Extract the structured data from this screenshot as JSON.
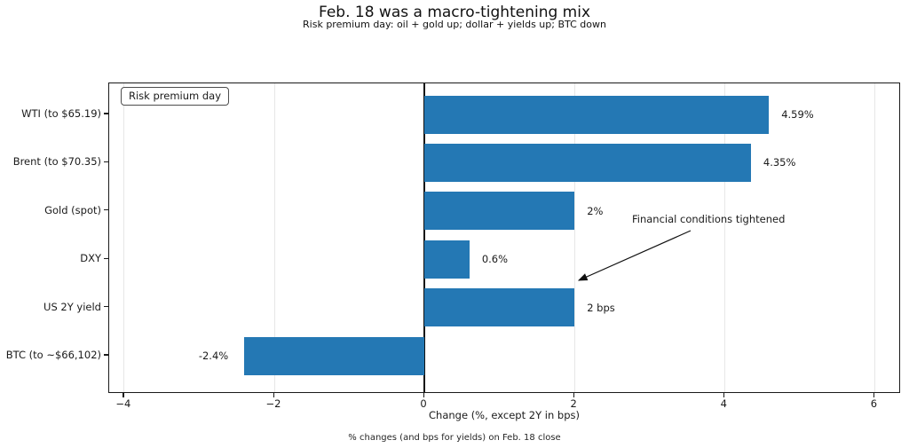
{
  "chart_data": {
    "type": "bar",
    "orientation": "horizontal",
    "title": "Feb. 18 was a macro-tightening mix",
    "subtitle": "Risk premium day: oil + gold up; dollar + yields up; BTC down",
    "categories": [
      "WTI (to $65.19)",
      "Brent (to $70.35)",
      "Gold (spot)",
      "DXY",
      "US 2Y yield",
      "BTC (to ~$66,102)"
    ],
    "values": [
      4.59,
      4.35,
      2.0,
      0.6,
      2.0,
      -2.4
    ],
    "value_labels": [
      "4.59%",
      "4.35%",
      "2%",
      "0.6%",
      "2 bps",
      "-2.4%"
    ],
    "xlabel": "Change (%, except 2Y in bps)",
    "footer": "% changes (and bps for yields) on Feb. 18 close",
    "xticks": [
      -4,
      -2,
      0,
      2,
      4,
      6
    ],
    "xtick_labels": [
      "−4",
      "−2",
      "0",
      "2",
      "4",
      "6"
    ],
    "xlim": [
      -4.2,
      6.35
    ],
    "grid": "vertical",
    "legend": "Risk premium day",
    "legend_position": "upper left",
    "annotation": "Financial conditions tightened",
    "bar_color": "#2478b4",
    "gridline_color": "#e7e7e7",
    "zero_line_color": "#111111"
  }
}
